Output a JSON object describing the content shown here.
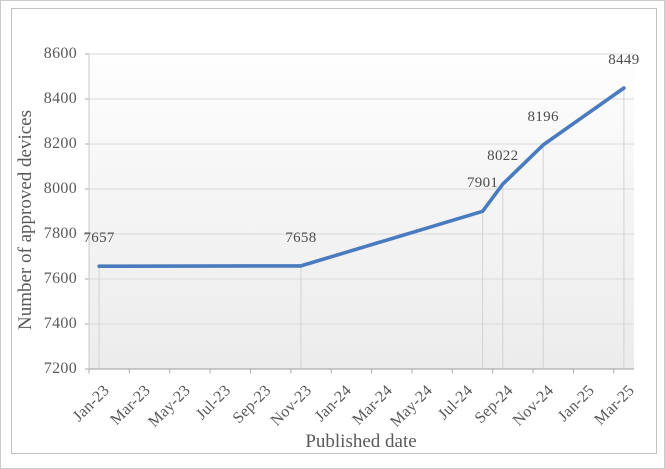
{
  "chart_data": {
    "type": "line",
    "title": "",
    "xlabel": "Published date",
    "ylabel": "Number of approved devices",
    "x_first_month": "Jan-23",
    "x_last_month": "Mar-25",
    "x_months_total": 27,
    "x_tick_interval_months": 2,
    "x_tick_labels": [
      "Jan-23",
      "Mar-23",
      "May-23",
      "Jul-23",
      "Sep-23",
      "Nov-23",
      "Jan-24",
      "Mar-24",
      "May-24",
      "Jul-24",
      "Sep-24",
      "Nov-24",
      "Jan-25",
      "Mar-25"
    ],
    "ylim": [
      7200,
      8600
    ],
    "y_tick_step": 200,
    "y_tick_labels": [
      "7200",
      "7400",
      "7600",
      "7800",
      "8000",
      "8200",
      "8400",
      "8600"
    ],
    "grid": {
      "horizontal": true,
      "vertical": false,
      "drop_lines_at_points": true
    },
    "legend": "none",
    "series": [
      {
        "name": "Number of approved devices",
        "points": [
          {
            "month": "Jan-23",
            "month_index": 0,
            "value": 7657
          },
          {
            "month": "Nov-23",
            "month_index": 10,
            "value": 7658
          },
          {
            "month": "Aug-24",
            "month_index": 19,
            "value": 7901
          },
          {
            "month": "Sep-24",
            "month_index": 20,
            "value": 8022
          },
          {
            "month": "Nov-24",
            "month_index": 22,
            "value": 8196
          },
          {
            "month": "Mar-25",
            "month_index": 26,
            "value": 8449
          }
        ],
        "data_labels": [
          "7657",
          "7658",
          "7901",
          "8022",
          "8196",
          "8449"
        ]
      }
    ],
    "colors": {
      "line": "#4a7bbf",
      "gridline": "#d9d9d9",
      "drop_line": "#d2d2d2",
      "axis_line": "#adadad",
      "y_axis_line": "#c9c9c9",
      "tick_text": "#595959",
      "data_label_text": "#4c4c4c",
      "plot_fill_top": "#fefefe",
      "plot_fill_bottom": "#ececec",
      "frame_border": "#c0c0c0",
      "outer_border": "#cbcbcb"
    }
  }
}
